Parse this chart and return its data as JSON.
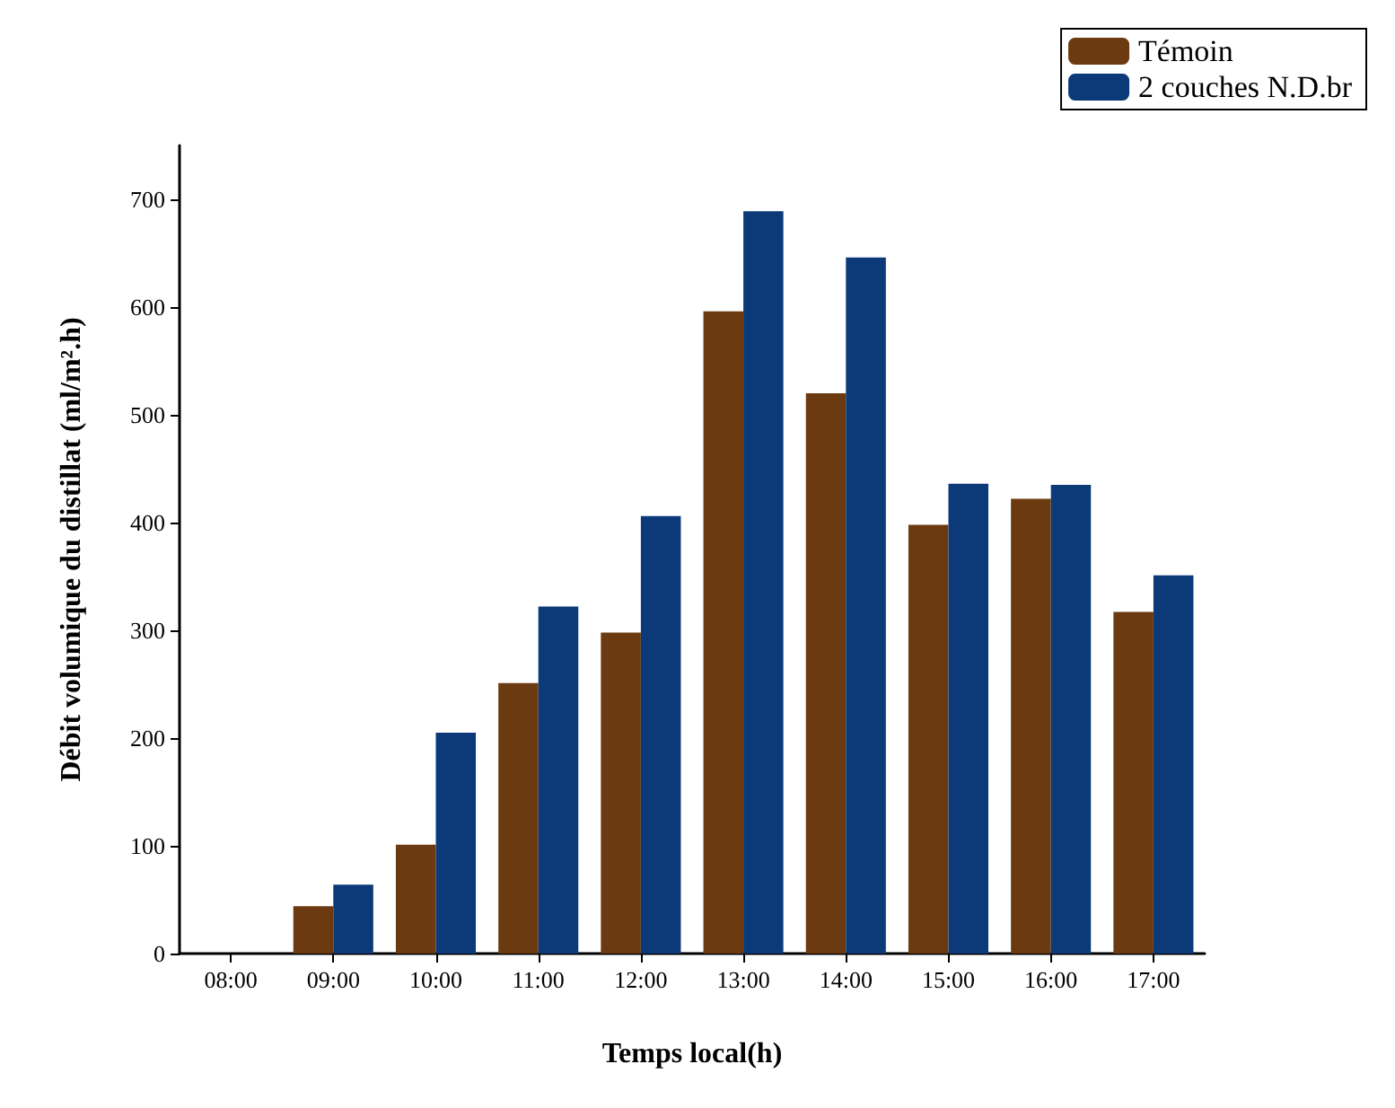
{
  "chart_data": {
    "type": "bar",
    "xlabel": "Temps local(h)",
    "ylabel": "Débit volumique du distillat (ml/m².h)",
    "categories": [
      "08:00",
      "09:00",
      "10:00",
      "11:00",
      "12:00",
      "13:00",
      "14:00",
      "15:00",
      "16:00",
      "17:00"
    ],
    "series": [
      {
        "name": "Témoin",
        "color": "#6b3a10",
        "values": [
          0,
          44,
          101,
          251,
          298,
          596,
          520,
          398,
          422,
          317
        ]
      },
      {
        "name": "2 couches N.D.br",
        "color": "#0c3a78",
        "values": [
          0,
          64,
          205,
          322,
          406,
          689,
          646,
          436,
          435,
          351
        ]
      }
    ],
    "ylim": [
      0,
      750
    ],
    "yticks": [
      0,
      100,
      200,
      300,
      400,
      500,
      600,
      700
    ],
    "grid": false,
    "legend": "top right"
  }
}
